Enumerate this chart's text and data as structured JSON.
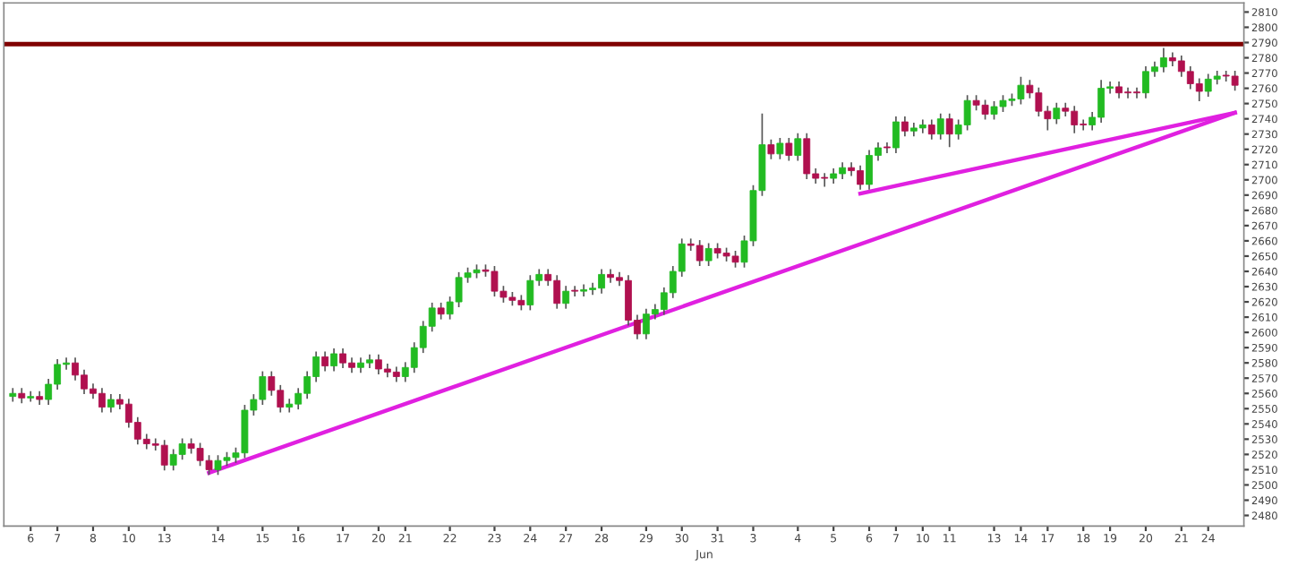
{
  "chart_data": {
    "type": "candlestick",
    "categories": [
      null,
      null,
      "6",
      null,
      null,
      "7",
      null,
      null,
      null,
      "8",
      null,
      null,
      null,
      "10",
      null,
      null,
      null,
      "13",
      null,
      null,
      null,
      null,
      null,
      "14",
      null,
      null,
      null,
      null,
      "15",
      null,
      null,
      null,
      "16",
      null,
      null,
      null,
      null,
      "17",
      null,
      null,
      null,
      "20",
      null,
      null,
      "21",
      null,
      null,
      null,
      null,
      "22",
      null,
      null,
      null,
      null,
      "23",
      null,
      null,
      null,
      "24",
      null,
      null,
      null,
      "27",
      null,
      null,
      null,
      "28",
      null,
      null,
      null,
      null,
      "29",
      null,
      null,
      null,
      "30",
      null,
      null,
      null,
      "31",
      null,
      null,
      null,
      "3",
      null,
      null,
      null,
      null,
      "4",
      null,
      null,
      null,
      "5",
      null,
      null,
      null,
      "6",
      null,
      null,
      "7",
      null,
      null,
      "10",
      null,
      null,
      "11",
      null,
      null,
      null,
      null,
      "13",
      null,
      null,
      "14",
      null,
      null,
      "17",
      null,
      null,
      null,
      "18",
      null,
      null,
      "19",
      null,
      null,
      null,
      "20",
      null,
      null,
      null,
      "21",
      null,
      null,
      "24",
      null,
      null,
      null
    ],
    "ohlc": [
      [
        2558,
        2563,
        2555,
        2560
      ],
      [
        2560,
        2563,
        2554,
        2557
      ],
      [
        2557,
        2561,
        2555,
        2558
      ],
      [
        2558,
        2561,
        2553,
        2556
      ],
      [
        2556,
        2569,
        2553,
        2566
      ],
      [
        2566,
        2582,
        2563,
        2579
      ],
      [
        2579,
        2583,
        2576,
        2580
      ],
      [
        2580,
        2583,
        2569,
        2572
      ],
      [
        2572,
        2575,
        2560,
        2563
      ],
      [
        2563,
        2566,
        2557,
        2560
      ],
      [
        2560,
        2563,
        2548,
        2551
      ],
      [
        2551,
        2559,
        2548,
        2556
      ],
      [
        2556,
        2559,
        2550,
        2553
      ],
      [
        2553,
        2556,
        2538,
        2541
      ],
      [
        2541,
        2544,
        2527,
        2530
      ],
      [
        2530,
        2533,
        2524,
        2527
      ],
      [
        2527,
        2530,
        2523,
        2526
      ],
      [
        2526,
        2529,
        2510,
        2513
      ],
      [
        2513,
        2523,
        2510,
        2520
      ],
      [
        2520,
        2530,
        2517,
        2527
      ],
      [
        2527,
        2530,
        2521,
        2524
      ],
      [
        2524,
        2527,
        2513,
        2516
      ],
      [
        2516,
        2519,
        2507,
        2510
      ],
      [
        2510,
        2519,
        2507,
        2516
      ],
      [
        2516,
        2521,
        2513,
        2518
      ],
      [
        2518,
        2524,
        2515,
        2521
      ],
      [
        2521,
        2552,
        2518,
        2549
      ],
      [
        2549,
        2559,
        2546,
        2556
      ],
      [
        2556,
        2574,
        2553,
        2571
      ],
      [
        2571,
        2574,
        2559,
        2562
      ],
      [
        2562,
        2565,
        2548,
        2551
      ],
      [
        2551,
        2556,
        2548,
        2553
      ],
      [
        2553,
        2563,
        2550,
        2560
      ],
      [
        2560,
        2574,
        2557,
        2571
      ],
      [
        2571,
        2587,
        2568,
        2584
      ],
      [
        2584,
        2587,
        2575,
        2578
      ],
      [
        2578,
        2589,
        2575,
        2586
      ],
      [
        2586,
        2589,
        2577,
        2580
      ],
      [
        2580,
        2583,
        2574,
        2577
      ],
      [
        2577,
        2583,
        2574,
        2580
      ],
      [
        2580,
        2585,
        2577,
        2582
      ],
      [
        2582,
        2585,
        2573,
        2576
      ],
      [
        2576,
        2579,
        2571,
        2574
      ],
      [
        2574,
        2577,
        2568,
        2571
      ],
      [
        2571,
        2580,
        2568,
        2577
      ],
      [
        2577,
        2593,
        2574,
        2590
      ],
      [
        2590,
        2607,
        2587,
        2604
      ],
      [
        2604,
        2619,
        2601,
        2616
      ],
      [
        2616,
        2619,
        2609,
        2612
      ],
      [
        2612,
        2623,
        2609,
        2620
      ],
      [
        2620,
        2639,
        2617,
        2636
      ],
      [
        2636,
        2642,
        2633,
        2639
      ],
      [
        2639,
        2644,
        2636,
        2641
      ],
      [
        2641,
        2644,
        2637,
        2640
      ],
      [
        2640,
        2643,
        2624,
        2627
      ],
      [
        2627,
        2630,
        2620,
        2623
      ],
      [
        2623,
        2626,
        2618,
        2621
      ],
      [
        2621,
        2624,
        2615,
        2618
      ],
      [
        2618,
        2637,
        2615,
        2634
      ],
      [
        2634,
        2641,
        2631,
        2638
      ],
      [
        2638,
        2641,
        2631,
        2634
      ],
      [
        2634,
        2637,
        2616,
        2619
      ],
      [
        2619,
        2630,
        2616,
        2627
      ],
      [
        2627,
        2630,
        2624,
        2627
      ],
      [
        2627,
        2631,
        2624,
        2628
      ],
      [
        2628,
        2632,
        2625,
        2629
      ],
      [
        2629,
        2641,
        2626,
        2638
      ],
      [
        2638,
        2641,
        2633,
        2636
      ],
      [
        2636,
        2639,
        2631,
        2634
      ],
      [
        2634,
        2637,
        2605,
        2608
      ],
      [
        2608,
        2611,
        2596,
        2599
      ],
      [
        2599,
        2615,
        2596,
        2612
      ],
      [
        2612,
        2618,
        2609,
        2615
      ],
      [
        2615,
        2629,
        2612,
        2626
      ],
      [
        2626,
        2643,
        2623,
        2640
      ],
      [
        2640,
        2661,
        2637,
        2658
      ],
      [
        2658,
        2661,
        2654,
        2657
      ],
      [
        2657,
        2660,
        2644,
        2647
      ],
      [
        2647,
        2658,
        2644,
        2655
      ],
      [
        2655,
        2658,
        2649,
        2652
      ],
      [
        2652,
        2655,
        2647,
        2650
      ],
      [
        2650,
        2653,
        2643,
        2646
      ],
      [
        2646,
        2663,
        2643,
        2660
      ],
      [
        2660,
        2696,
        2657,
        2693
      ],
      [
        2693,
        2743,
        2690,
        2723
      ],
      [
        2723,
        2726,
        2714,
        2717
      ],
      [
        2717,
        2727,
        2714,
        2724
      ],
      [
        2724,
        2727,
        2713,
        2716
      ],
      [
        2716,
        2730,
        2713,
        2727
      ],
      [
        2727,
        2730,
        2701,
        2704
      ],
      [
        2704,
        2707,
        2698,
        2701
      ],
      [
        2701,
        2704,
        2696,
        2701
      ],
      [
        2701,
        2707,
        2698,
        2704
      ],
      [
        2704,
        2711,
        2701,
        2708
      ],
      [
        2708,
        2711,
        2703,
        2706
      ],
      [
        2706,
        2709,
        2694,
        2697
      ],
      [
        2697,
        2719,
        2694,
        2716
      ],
      [
        2716,
        2724,
        2713,
        2721
      ],
      [
        2721,
        2724,
        2718,
        2721
      ],
      [
        2721,
        2741,
        2718,
        2738
      ],
      [
        2738,
        2741,
        2729,
        2732
      ],
      [
        2732,
        2737,
        2729,
        2734
      ],
      [
        2734,
        2739,
        2731,
        2736
      ],
      [
        2736,
        2739,
        2727,
        2730
      ],
      [
        2730,
        2743,
        2727,
        2740
      ],
      [
        2740,
        2743,
        2722,
        2730
      ],
      [
        2730,
        2739,
        2727,
        2736
      ],
      [
        2736,
        2755,
        2733,
        2752
      ],
      [
        2752,
        2755,
        2746,
        2749
      ],
      [
        2749,
        2752,
        2740,
        2743
      ],
      [
        2743,
        2751,
        2740,
        2748
      ],
      [
        2748,
        2755,
        2745,
        2752
      ],
      [
        2752,
        2756,
        2749,
        2753
      ],
      [
        2753,
        2767,
        2750,
        2762
      ],
      [
        2762,
        2765,
        2754,
        2757
      ],
      [
        2757,
        2760,
        2742,
        2745
      ],
      [
        2745,
        2748,
        2733,
        2740
      ],
      [
        2740,
        2750,
        2737,
        2747
      ],
      [
        2747,
        2750,
        2742,
        2745
      ],
      [
        2745,
        2748,
        2731,
        2736
      ],
      [
        2736,
        2739,
        2733,
        2736
      ],
      [
        2736,
        2744,
        2733,
        2741
      ],
      [
        2741,
        2765,
        2738,
        2760
      ],
      [
        2760,
        2764,
        2757,
        2761
      ],
      [
        2761,
        2764,
        2754,
        2757
      ],
      [
        2757,
        2760,
        2754,
        2757
      ],
      [
        2757,
        2760,
        2754,
        2757
      ],
      [
        2757,
        2774,
        2754,
        2771
      ],
      [
        2771,
        2777,
        2768,
        2774
      ],
      [
        2774,
        2786,
        2771,
        2780
      ],
      [
        2780,
        2783,
        2775,
        2778
      ],
      [
        2778,
        2781,
        2768,
        2771
      ],
      [
        2771,
        2774,
        2760,
        2763
      ],
      [
        2763,
        2766,
        2752,
        2758
      ],
      [
        2758,
        2769,
        2755,
        2766
      ],
      [
        2766,
        2771,
        2763,
        2768
      ],
      [
        2768,
        2771,
        2765,
        2768
      ],
      [
        2768,
        2771,
        2759,
        2762
      ]
    ],
    "colors": [
      "#22bb22",
      "#b0104f",
      "#22bb22",
      "#b0104f",
      "#22bb22",
      "#22bb22",
      "#22bb22",
      "#b0104f",
      "#b0104f",
      "#b0104f",
      "#b0104f",
      "#22bb22",
      "#b0104f",
      "#b0104f",
      "#b0104f",
      "#b0104f",
      "#b0104f",
      "#b0104f",
      "#22bb22",
      "#22bb22",
      "#b0104f",
      "#b0104f",
      "#b0104f",
      "#22bb22",
      "#22bb22",
      "#22bb22",
      "#22bb22",
      "#22bb22",
      "#22bb22",
      "#b0104f",
      "#b0104f",
      "#22bb22",
      "#22bb22",
      "#22bb22",
      "#22bb22",
      "#b0104f",
      "#22bb22",
      "#b0104f",
      "#b0104f",
      "#22bb22",
      "#22bb22",
      "#b0104f",
      "#b0104f",
      "#b0104f",
      "#22bb22",
      "#22bb22",
      "#22bb22",
      "#22bb22",
      "#b0104f",
      "#22bb22",
      "#22bb22",
      "#22bb22",
      "#22bb22",
      "#b0104f",
      "#b0104f",
      "#b0104f",
      "#b0104f",
      "#b0104f",
      "#22bb22",
      "#22bb22",
      "#b0104f",
      "#b0104f",
      "#22bb22",
      "#b0104f",
      "#22bb22",
      "#22bb22",
      "#22bb22",
      "#b0104f",
      "#b0104f",
      "#b0104f",
      "#b0104f",
      "#22bb22",
      "#22bb22",
      "#22bb22",
      "#22bb22",
      "#22bb22",
      "#b0104f",
      "#b0104f",
      "#22bb22",
      "#b0104f",
      "#b0104f",
      "#b0104f",
      "#22bb22",
      "#22bb22",
      "#22bb22",
      "#b0104f",
      "#22bb22",
      "#b0104f",
      "#22bb22",
      "#b0104f",
      "#b0104f",
      "#b0104f",
      "#22bb22",
      "#22bb22",
      "#b0104f",
      "#b0104f",
      "#22bb22",
      "#22bb22",
      "#b0104f",
      "#22bb22",
      "#b0104f",
      "#22bb22",
      "#22bb22",
      "#b0104f",
      "#22bb22",
      "#b0104f",
      "#22bb22",
      "#22bb22",
      "#b0104f",
      "#b0104f",
      "#22bb22",
      "#22bb22",
      "#22bb22",
      "#22bb22",
      "#b0104f",
      "#b0104f",
      "#b0104f",
      "#22bb22",
      "#b0104f",
      "#b0104f",
      "#b0104f",
      "#22bb22",
      "#22bb22",
      "#22bb22",
      "#b0104f",
      "#b0104f",
      "#b0104f",
      "#22bb22",
      "#22bb22",
      "#22bb22",
      "#b0104f",
      "#b0104f",
      "#b0104f",
      "#b0104f",
      "#22bb22",
      "#22bb22",
      "#b0104f",
      "#b0104f"
    ],
    "series": [
      {
        "type": "line",
        "color": "#e020e0",
        "values": [
          null,
          null,
          null,
          null,
          null,
          null,
          null,
          null,
          null,
          null,
          null,
          null,
          null,
          null,
          null,
          null,
          null,
          null,
          null,
          null,
          null,
          null,
          2508,
          null,
          null,
          null,
          null,
          null,
          null,
          null,
          null,
          null,
          null,
          null,
          null,
          null,
          null,
          null,
          null,
          null,
          null,
          null,
          null,
          null,
          null,
          null,
          null,
          null,
          null,
          null,
          null,
          null,
          null,
          null,
          null,
          null,
          null,
          null,
          null,
          null,
          null,
          null,
          null,
          null,
          null,
          null,
          null,
          null,
          null,
          null,
          null,
          null,
          null,
          null,
          null,
          null,
          null,
          null,
          null,
          null,
          null,
          null,
          null,
          null,
          null,
          null,
          null,
          null,
          null,
          null,
          null,
          null,
          null,
          null,
          null,
          null,
          null,
          null,
          null,
          null,
          null,
          null,
          null,
          null,
          null,
          null,
          null,
          null,
          null,
          null,
          null,
          null,
          null,
          null,
          null,
          null,
          null,
          null,
          null,
          null,
          null,
          null,
          null,
          null,
          null,
          null,
          null,
          null,
          null,
          null,
          null,
          null,
          null,
          null,
          null,
          null,
          null,
          2744
        ]
      },
      {
        "type": "line",
        "color": "#e020e0",
        "values": [
          null,
          null,
          null,
          null,
          null,
          null,
          null,
          null,
          null,
          null,
          null,
          null,
          null,
          null,
          null,
          null,
          null,
          null,
          null,
          null,
          null,
          null,
          null,
          null,
          null,
          null,
          null,
          null,
          null,
          null,
          null,
          null,
          null,
          null,
          null,
          null,
          null,
          null,
          null,
          null,
          null,
          null,
          null,
          null,
          null,
          null,
          null,
          null,
          null,
          null,
          null,
          null,
          null,
          null,
          null,
          null,
          null,
          null,
          null,
          null,
          null,
          null,
          null,
          null,
          null,
          null,
          null,
          null,
          null,
          null,
          null,
          null,
          null,
          null,
          null,
          null,
          null,
          null,
          null,
          null,
          null,
          null,
          null,
          null,
          null,
          null,
          null,
          null,
          null,
          null,
          null,
          null,
          null,
          null,
          null,
          2691,
          null,
          null,
          null,
          null,
          null,
          null,
          null,
          null,
          null,
          null,
          null,
          null,
          null,
          null,
          null,
          null,
          null,
          null,
          null,
          null,
          null,
          null,
          null,
          null,
          null,
          null,
          null,
          null,
          null,
          null,
          null,
          null,
          null,
          null,
          null,
          null,
          null,
          null,
          null,
          null,
          null,
          2744
        ]
      }
    ],
    "ref_lines": [
      {
        "axis": "y",
        "value": 2789,
        "color": "#800000"
      }
    ],
    "annotations": [
      "Jun"
    ],
    "ylim": [
      2473,
      2816
    ],
    "yticks": [
      2480,
      2490,
      2500,
      2510,
      2520,
      2530,
      2540,
      2550,
      2560,
      2570,
      2580,
      2590,
      2600,
      2610,
      2620,
      2630,
      2640,
      2650,
      2660,
      2670,
      2680,
      2690,
      2700,
      2710,
      2720,
      2730,
      2740,
      2750,
      2760,
      2770,
      2780,
      2790,
      2800,
      2810
    ],
    "grid": false,
    "legend": false
  }
}
